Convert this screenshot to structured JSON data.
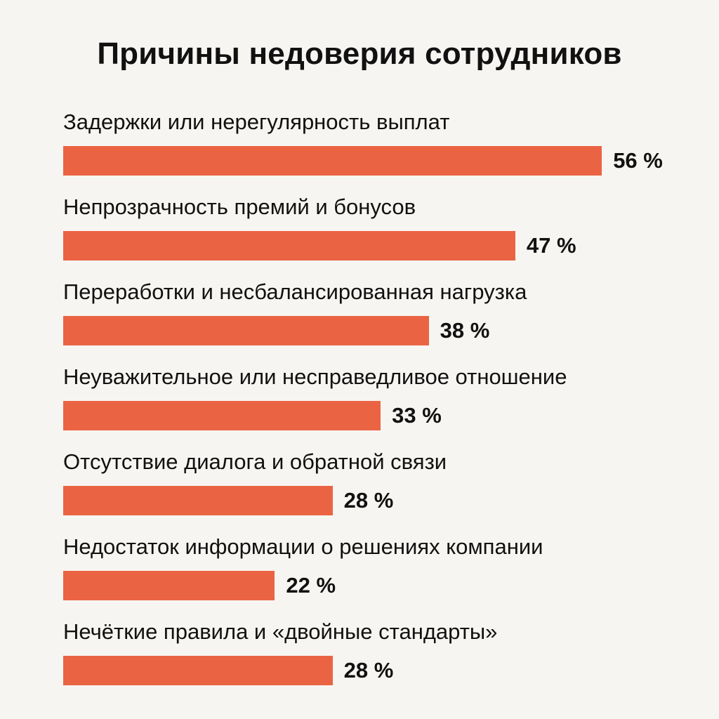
{
  "colors": {
    "background": "#f7f5f1",
    "bar": "#ea6444",
    "text": "#111111"
  },
  "chart_data": {
    "type": "bar",
    "orientation": "horizontal",
    "title": "Причины недоверия сотрудников",
    "xlabel": "",
    "ylabel": "",
    "unit": "%",
    "xlim": [
      0,
      60
    ],
    "grid": false,
    "legend": "none",
    "categories": [
      "Задержки или нерегулярность выплат",
      "Непрозрачность премий и бонусов",
      "Переработки и несбалансированная нагрузка",
      "Неуважительное или несправедливое отношение",
      "Отсутствие диалога и обратной связи",
      "Недостаток информации о решениях компании",
      "Нечёткие правила и «двойные стандарты»"
    ],
    "values": [
      56,
      47,
      38,
      33,
      28,
      22,
      28
    ],
    "value_labels": [
      "56 %",
      "47 %",
      "38 %",
      "33 %",
      "28 %",
      "22 %",
      "28 %"
    ]
  }
}
